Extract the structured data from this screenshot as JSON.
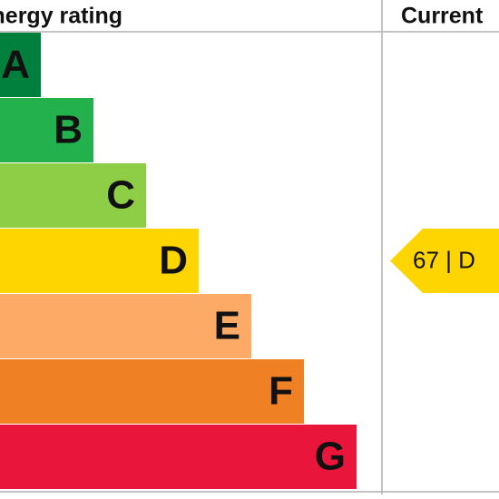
{
  "header": {
    "title": "Energy rating",
    "current": "Current"
  },
  "bands": [
    {
      "letter": "A",
      "color": "#007f3d"
    },
    {
      "letter": "B",
      "color": "#23b14d"
    },
    {
      "letter": "C",
      "color": "#8dce46"
    },
    {
      "letter": "D",
      "color": "#ffd500"
    },
    {
      "letter": "E",
      "color": "#fcaa65"
    },
    {
      "letter": "F",
      "color": "#ef8023"
    },
    {
      "letter": "G",
      "color": "#e9153b"
    }
  ],
  "current_rating": {
    "label": "67 | D",
    "band_index": 3,
    "color": "#ffd500"
  }
}
